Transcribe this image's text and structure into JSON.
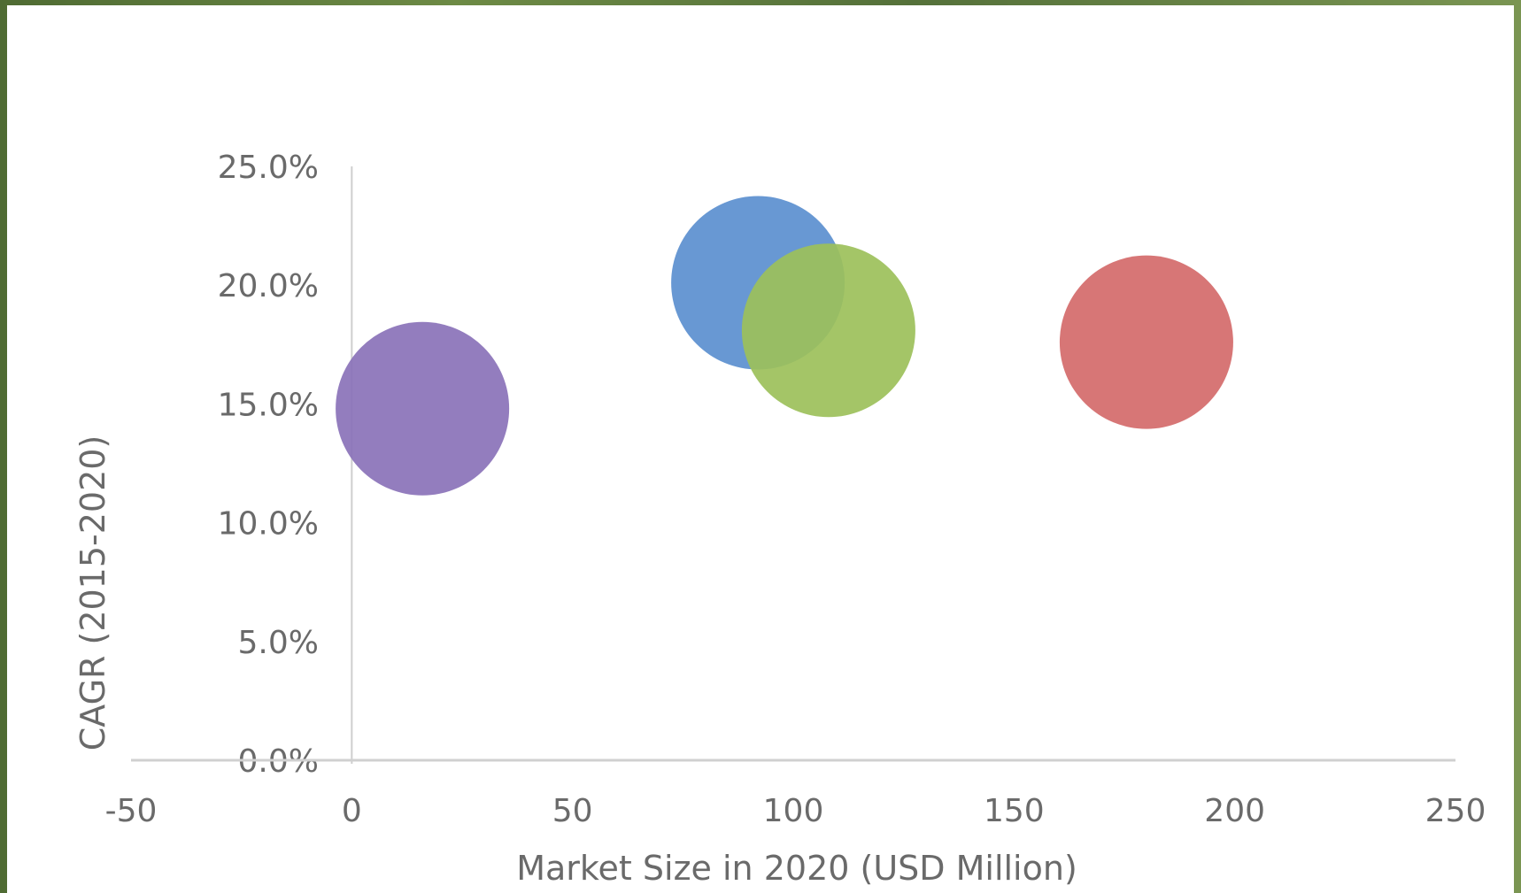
{
  "chart_data": {
    "type": "scatter",
    "xlabel": "Market Size in 2020 (USD Million)",
    "ylabel": "CAGR (2015-2020)",
    "xlim": [
      -50,
      250
    ],
    "ylim": [
      0,
      25
    ],
    "x_ticks": [
      -50,
      0,
      50,
      100,
      150,
      200,
      250
    ],
    "x_tick_labels": [
      "-50",
      "0",
      "50",
      "100",
      "150",
      "200",
      "250"
    ],
    "y_ticks": [
      0,
      5,
      10,
      15,
      20,
      25
    ],
    "y_tick_labels": [
      "0.0%",
      "5.0%",
      "10.0%",
      "15.0%",
      "20.0%",
      "25.0%"
    ],
    "grid": false,
    "legend": "none",
    "points": [
      {
        "x": 16,
        "y": 14.8,
        "color": "#8a72b8"
      },
      {
        "x": 92,
        "y": 20.1,
        "color": "#5b8fcf"
      },
      {
        "x": 108,
        "y": 18.1,
        "color": "#9cc05a"
      },
      {
        "x": 180,
        "y": 17.6,
        "color": "#d46a6a"
      }
    ]
  }
}
